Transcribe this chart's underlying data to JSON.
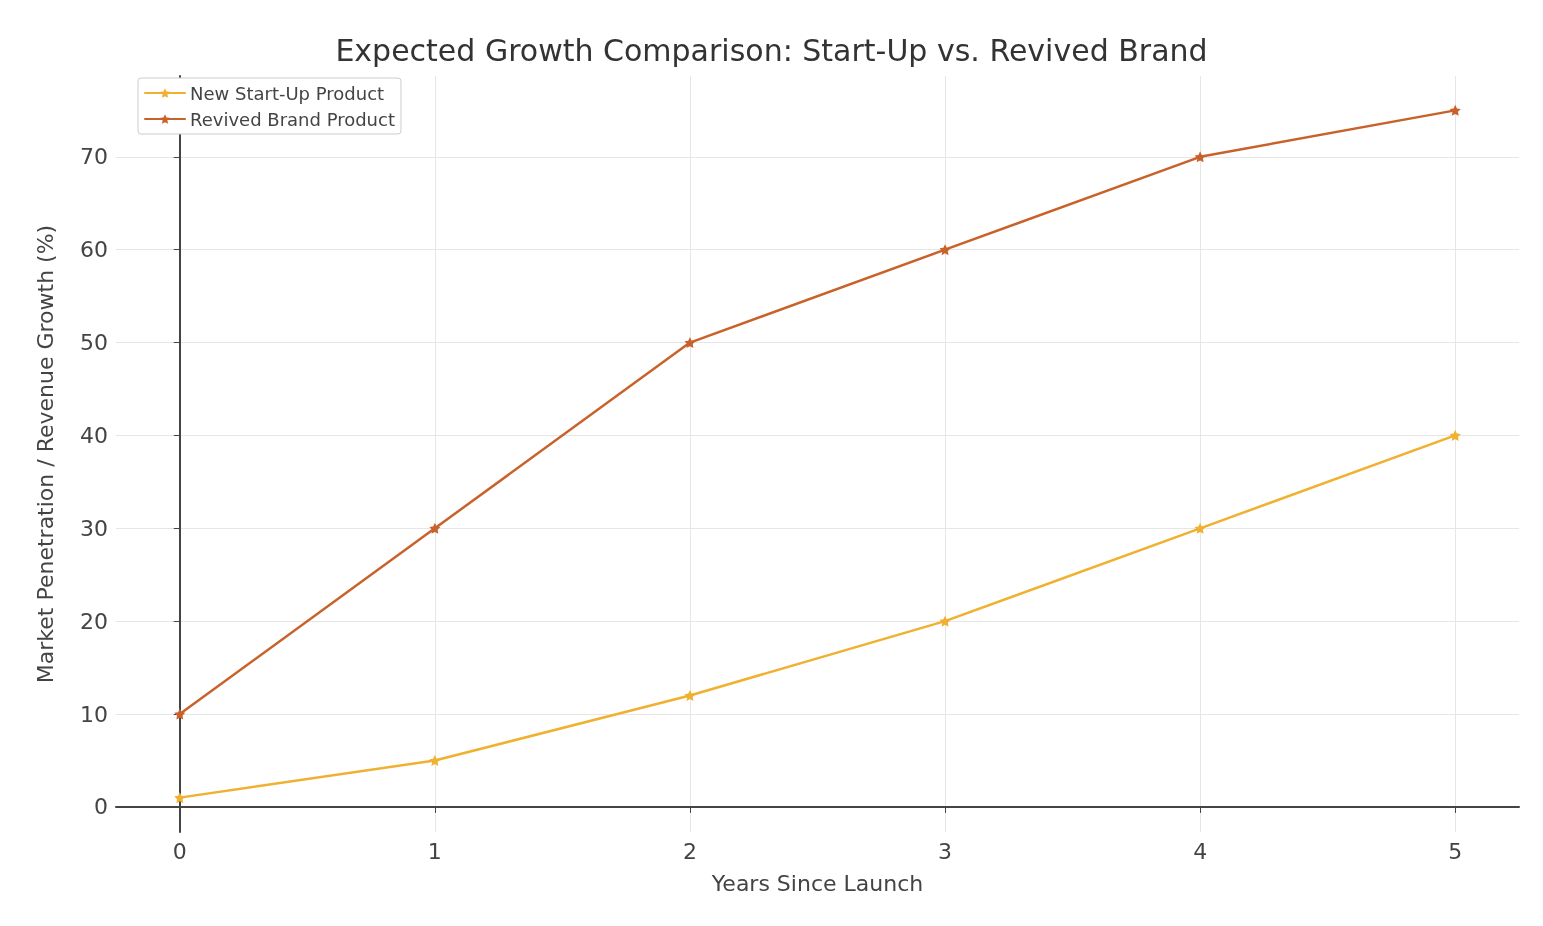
{
  "chart_data": {
    "type": "line",
    "title": "Expected Growth Comparison: Start-Up vs. Revived Brand",
    "xlabel": "Years Since Launch",
    "ylabel": "Market Penetration / Revenue Growth (%)",
    "x": [
      0,
      1,
      2,
      3,
      4,
      5
    ],
    "series": [
      {
        "name": "New Start-Up Product",
        "color": "#f0b030",
        "values": [
          1,
          5,
          12,
          20,
          30,
          40
        ]
      },
      {
        "name": "Revived Brand Product",
        "color": "#c8622a",
        "values": [
          10,
          30,
          50,
          60,
          70,
          75
        ]
      }
    ],
    "xlim": [
      -0.25,
      5.25
    ],
    "xticks": [
      0,
      1,
      2,
      3,
      4,
      5
    ],
    "ylim": [
      -2.7,
      78.7
    ],
    "yticks": [
      0,
      10,
      20,
      30,
      40,
      50,
      60,
      70
    ],
    "grid": true,
    "legend": "top left",
    "marker": "star",
    "line_style": "solid"
  }
}
